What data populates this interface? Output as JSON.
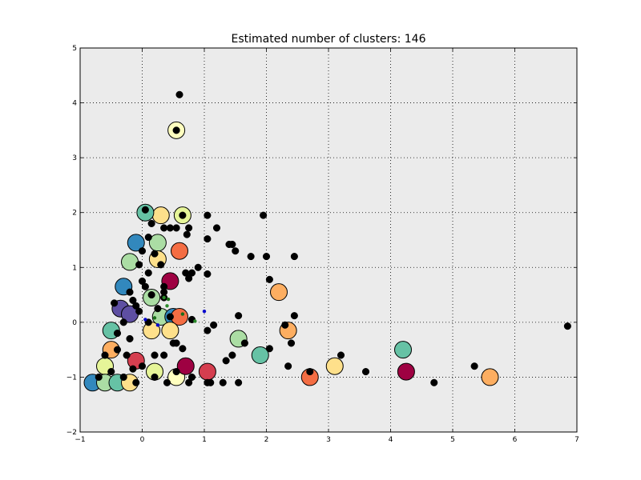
{
  "chart_data": {
    "type": "scatter",
    "title": "Estimated number of clusters: 146",
    "xlabel": "",
    "ylabel": "",
    "xlim": [
      -1,
      7
    ],
    "ylim": [
      -2,
      5
    ],
    "x_ticks": [
      -1,
      0,
      1,
      2,
      3,
      4,
      5,
      6,
      7
    ],
    "y_ticks": [
      -2,
      -1,
      0,
      1,
      2,
      3,
      4,
      5
    ],
    "x_tick_labels": [
      "−1",
      "0",
      "1",
      "2",
      "3",
      "4",
      "5",
      "6",
      "7"
    ],
    "y_tick_labels": [
      "−2",
      "−1",
      "0",
      "1",
      "2",
      "3",
      "4",
      "5"
    ],
    "grid": true,
    "background": "#ebebeb",
    "cluster_centers": [
      {
        "x": 0.55,
        "y": 3.5,
        "color": "#ffffbf"
      },
      {
        "x": 0.65,
        "y": 1.95,
        "color": "#e6f598"
      },
      {
        "x": 0.3,
        "y": 1.95,
        "color": "#fee08b"
      },
      {
        "x": 0.05,
        "y": 2.0,
        "color": "#66c2a5"
      },
      {
        "x": 0.6,
        "y": 1.3,
        "color": "#f46d43"
      },
      {
        "x": -0.1,
        "y": 1.45,
        "color": "#3288bd"
      },
      {
        "x": 0.25,
        "y": 1.45,
        "color": "#abdda4"
      },
      {
        "x": -0.2,
        "y": 1.1,
        "color": "#abdda4"
      },
      {
        "x": 0.25,
        "y": 1.15,
        "color": "#fee08b"
      },
      {
        "x": -0.3,
        "y": 0.65,
        "color": "#3288bd"
      },
      {
        "x": 0.45,
        "y": 0.75,
        "color": "#9e0142"
      },
      {
        "x": 0.15,
        "y": 0.45,
        "color": "#abdda4"
      },
      {
        "x": -0.35,
        "y": 0.25,
        "color": "#5e4fa2"
      },
      {
        "x": -0.2,
        "y": 0.15,
        "color": "#5e4fa2"
      },
      {
        "x": 0.3,
        "y": 0.1,
        "color": "#abdda4"
      },
      {
        "x": 0.5,
        "y": 0.1,
        "color": "#3288bd"
      },
      {
        "x": 0.6,
        "y": 0.1,
        "color": "#f46d43"
      },
      {
        "x": 0.15,
        "y": -0.15,
        "color": "#fee08b"
      },
      {
        "x": 0.45,
        "y": -0.15,
        "color": "#fee08b"
      },
      {
        "x": -0.5,
        "y": -0.15,
        "color": "#66c2a5"
      },
      {
        "x": -0.5,
        "y": -0.5,
        "color": "#fdae61"
      },
      {
        "x": -0.1,
        "y": -0.7,
        "color": "#d53e4f"
      },
      {
        "x": -0.6,
        "y": -0.8,
        "color": "#e6f598"
      },
      {
        "x": -0.8,
        "y": -1.1,
        "color": "#3288bd"
      },
      {
        "x": -0.6,
        "y": -1.1,
        "color": "#abdda4"
      },
      {
        "x": -0.4,
        "y": -1.1,
        "color": "#66c2a5"
      },
      {
        "x": -0.2,
        "y": -1.1,
        "color": "#fee08b"
      },
      {
        "x": 0.2,
        "y": -0.9,
        "color": "#e6f598"
      },
      {
        "x": 0.55,
        "y": -1.0,
        "color": "#ffffbf"
      },
      {
        "x": 0.7,
        "y": -0.8,
        "color": "#9e0142"
      },
      {
        "x": 1.05,
        "y": -0.9,
        "color": "#d53e4f"
      },
      {
        "x": 1.55,
        "y": -0.3,
        "color": "#abdda4"
      },
      {
        "x": 1.9,
        "y": -0.6,
        "color": "#66c2a5"
      },
      {
        "x": 2.2,
        "y": 0.55,
        "color": "#fdae61"
      },
      {
        "x": 2.35,
        "y": -0.15,
        "color": "#fdae61"
      },
      {
        "x": 2.7,
        "y": -1.0,
        "color": "#f46d43"
      },
      {
        "x": 3.1,
        "y": -0.8,
        "color": "#fee08b"
      },
      {
        "x": 4.2,
        "y": -0.5,
        "color": "#66c2a5"
      },
      {
        "x": 4.25,
        "y": -0.9,
        "color": "#9e0142"
      },
      {
        "x": 5.6,
        "y": -1.0,
        "color": "#fdae61"
      }
    ],
    "core_points": [
      [
        0.6,
        4.15
      ],
      [
        0.55,
        3.5
      ],
      [
        0.65,
        1.95
      ],
      [
        1.05,
        1.95
      ],
      [
        1.95,
        1.95
      ],
      [
        1.2,
        1.72
      ],
      [
        0.75,
        1.72
      ],
      [
        0.55,
        1.72
      ],
      [
        0.45,
        1.72
      ],
      [
        0.35,
        1.72
      ],
      [
        0.72,
        1.6
      ],
      [
        1.05,
        1.52
      ],
      [
        1.4,
        1.42
      ],
      [
        1.45,
        1.42
      ],
      [
        1.5,
        1.3
      ],
      [
        1.75,
        1.2
      ],
      [
        2.0,
        1.2
      ],
      [
        2.45,
        1.2
      ],
      [
        0.9,
        1.0
      ],
      [
        0.7,
        0.9
      ],
      [
        0.8,
        0.9
      ],
      [
        1.05,
        0.88
      ],
      [
        0.75,
        0.8
      ],
      [
        2.05,
        0.78
      ],
      [
        0.35,
        0.65
      ],
      [
        0.35,
        0.55
      ],
      [
        0.15,
        0.5
      ],
      [
        0.35,
        0.45
      ],
      [
        1.55,
        0.12
      ],
      [
        2.45,
        0.12
      ],
      [
        0.8,
        0.05
      ],
      [
        1.15,
        -0.05
      ],
      [
        1.05,
        -0.15
      ],
      [
        2.3,
        -0.05
      ],
      [
        0.5,
        -0.38
      ],
      [
        0.55,
        -0.38
      ],
      [
        1.65,
        -0.38
      ],
      [
        2.4,
        -0.38
      ],
      [
        0.65,
        -0.48
      ],
      [
        2.05,
        -0.48
      ],
      [
        0.2,
        -0.6
      ],
      [
        0.35,
        -0.6
      ],
      [
        1.45,
        -0.6
      ],
      [
        3.2,
        -0.6
      ],
      [
        1.35,
        -0.7
      ],
      [
        2.35,
        -0.8
      ],
      [
        5.35,
        -0.8
      ],
      [
        0.55,
        -0.9
      ],
      [
        2.7,
        -0.9
      ],
      [
        3.6,
        -0.9
      ],
      [
        0.2,
        -1.0
      ],
      [
        0.8,
        -1.0
      ],
      [
        0.4,
        -1.1
      ],
      [
        0.75,
        -1.1
      ],
      [
        1.05,
        -1.1
      ],
      [
        1.1,
        -1.1
      ],
      [
        1.3,
        -1.1
      ],
      [
        1.55,
        -1.1
      ],
      [
        4.7,
        -1.1
      ],
      [
        6.85,
        -0.07
      ],
      [
        -0.1,
        -1.1
      ],
      [
        -0.3,
        -1.0
      ],
      [
        -0.5,
        -0.9
      ],
      [
        -0.7,
        -1.0
      ],
      [
        -0.6,
        -0.6
      ],
      [
        -0.4,
        -0.5
      ],
      [
        -0.2,
        -0.3
      ],
      [
        -0.4,
        -0.2
      ],
      [
        -0.3,
        0.0
      ],
      [
        -0.1,
        0.3
      ],
      [
        -0.2,
        0.55
      ],
      [
        0.0,
        0.75
      ],
      [
        0.1,
        0.9
      ],
      [
        -0.05,
        1.05
      ],
      [
        0.0,
        1.3
      ],
      [
        0.1,
        1.55
      ],
      [
        0.15,
        1.8
      ],
      [
        0.05,
        2.05
      ],
      [
        0.2,
        1.25
      ],
      [
        0.3,
        1.05
      ],
      [
        0.05,
        0.65
      ],
      [
        -0.15,
        0.4
      ],
      [
        -0.05,
        0.2
      ],
      [
        0.1,
        0.0
      ],
      [
        -0.25,
        -0.6
      ],
      [
        -0.15,
        -0.85
      ],
      [
        0.0,
        -0.8
      ],
      [
        -0.45,
        0.35
      ],
      [
        0.25,
        0.25
      ],
      [
        0.45,
        0.1
      ]
    ],
    "noise_points": [
      [
        0.35,
        0.45
      ],
      [
        0.42,
        0.42
      ],
      [
        1.0,
        0.2
      ],
      [
        0.85,
        0.02
      ],
      [
        0.2,
        0.08
      ],
      [
        0.05,
        0.05
      ],
      [
        0.4,
        0.3
      ],
      [
        0.65,
        0.15
      ],
      [
        0.25,
        -0.05
      ]
    ]
  }
}
